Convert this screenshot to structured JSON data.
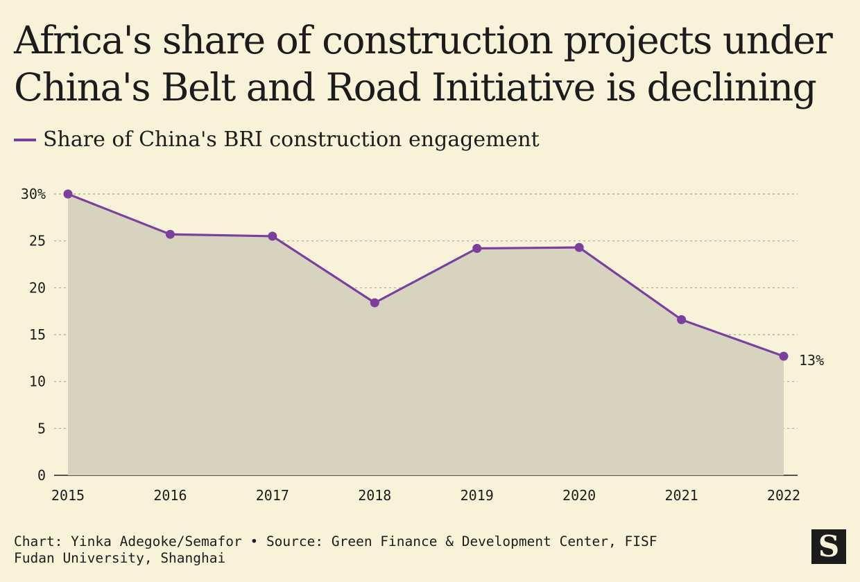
{
  "title": "Africa's share of construction projects under China's Belt and Road Initiative is declining",
  "legend_label": "Share of China's BRI construction engagement",
  "footer": {
    "line1": "Chart: Yinka Adegoke/Semafor • Source: Green Finance & Development Center, FISF",
    "line2": "Fudan University, Shanghai"
  },
  "logo_text": "S",
  "colors": {
    "background": "#f8f3d8",
    "line": "#7b3f9d",
    "area": "#d6d3bf",
    "grid": "#a8a597"
  },
  "chart_data": {
    "type": "area",
    "x": [
      "2015",
      "2016",
      "2017",
      "2018",
      "2019",
      "2020",
      "2021",
      "2022"
    ],
    "series": [
      {
        "name": "Share of China's BRI construction engagement",
        "values": [
          30,
          25.7,
          25.5,
          18.4,
          24.2,
          24.3,
          16.6,
          12.7
        ]
      }
    ],
    "ylim": [
      0,
      30
    ],
    "yticks": [
      0,
      5,
      10,
      15,
      20,
      25,
      30
    ],
    "ytick_labels": [
      "0",
      "5",
      "10",
      "15",
      "20",
      "25",
      "30%"
    ],
    "end_label": "13%",
    "grid": true
  }
}
